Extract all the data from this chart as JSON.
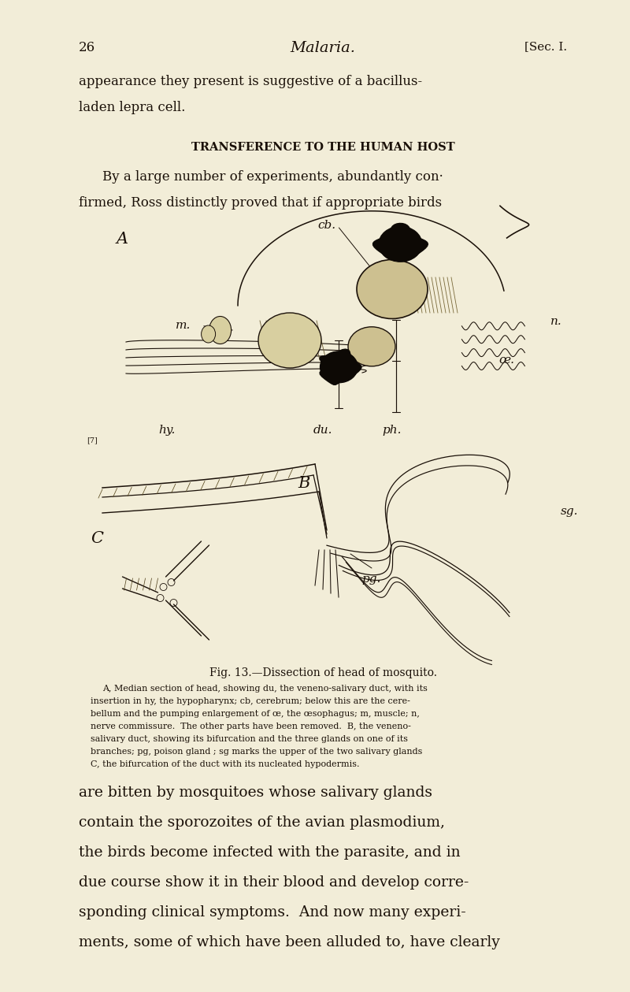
{
  "bg_color": "#f2edd8",
  "page_width": 8.0,
  "page_height": 12.59,
  "dpi": 100,
  "page_number": "26",
  "header_title": "Malaria.",
  "header_right": "[Sec. I.",
  "top_text_lines": [
    "appearance they present is suggestive of a bacillus-",
    "laden lepra cell."
  ],
  "section_heading": "Transference to the Human Host",
  "body_text_1_indent": "    By a large number of experiments, abundantly con·",
  "body_text_1_line2": "firmed, Ross distinctly proved that if appropriate birds",
  "fig_caption_title": "Fig. 13.—Dissection of head of mosquito.",
  "fig_caption_a": "A, Median section of head, showing ",
  "fig_caption_a_it": "du,",
  "fig_caption_a2": " the veneno-salivary duct, with its",
  "fig_caption_lines": [
    "A, Median section of head, showing du, the veneno-salivary duct, with its",
    "insertion in hy, the hypopharynx; cb, cerebrum; below this are the cere-",
    "bellum and the pumping enlargement of œ, the œsophagus; m, muscle; n,",
    "nerve commissure.  The other parts have been removed.  B, the veneno-",
    "salivary duct, showing its bifurcation and the three glands on one of its",
    "branches; pg, poison gland ; sg marks the upper of the two salivary glands",
    "C, the bifurcation of the duct with its nucleated hypodermis."
  ],
  "body_text_2": [
    "are bitten by mosquitoes whose salivary glands",
    "contain the sporozoites of the avian plasmodium,",
    "the birds become infected with the parasite, and in",
    "due course show it in their blood and develop corre-",
    "sponding clinical symptoms.  And now many experi-",
    "ments, some of which have been alluded to, have clearly"
  ],
  "text_color": "#1a1008"
}
